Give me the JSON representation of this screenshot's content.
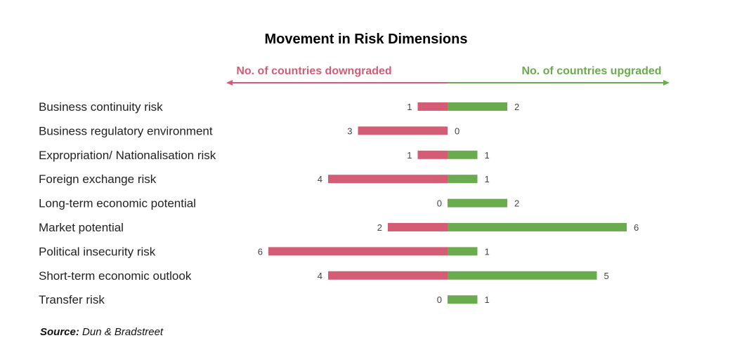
{
  "chart_data": {
    "type": "bar",
    "title": "Movement in Risk Dimensions",
    "categories": [
      "Business continuity risk",
      "Business regulatory environment",
      "Expropriation/ Nationalisation risk",
      "Foreign exchange risk",
      "Long-term economic potential",
      "Market potential",
      "Political insecurity risk",
      "Short-term economic outlook",
      "Transfer risk"
    ],
    "series": [
      {
        "name": "No. of countries downgraded",
        "values": [
          1,
          3,
          1,
          4,
          0,
          2,
          6,
          4,
          0
        ],
        "color": "#d45c74"
      },
      {
        "name": "No. of countries upgraded",
        "values": [
          2,
          0,
          1,
          1,
          2,
          6,
          1,
          5,
          1
        ],
        "color": "#6aab4e"
      }
    ],
    "xlim": [
      -6,
      6
    ]
  },
  "source": {
    "label": "Source:",
    "text": "Dun & Bradstreet"
  }
}
